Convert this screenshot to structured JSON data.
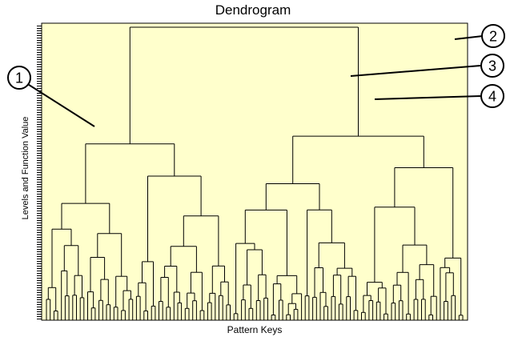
{
  "chart": {
    "title": "Dendrogram",
    "xlabel": "Pattern Keys",
    "ylabel": "Levels and Function Value",
    "plot_background": "#ffffcc",
    "line_color": "#000000"
  },
  "callouts": [
    {
      "label": "1"
    },
    {
      "label": "2"
    },
    {
      "label": "3"
    },
    {
      "label": "4"
    }
  ],
  "chart_data": {
    "type": "dendrogram",
    "title": "Dendrogram",
    "xlabel": "Pattern Keys",
    "ylabel": "Levels and Function Value",
    "leaf_count": 112,
    "callout_labels": [
      "1",
      "2",
      "3",
      "4"
    ],
    "grid": false
  }
}
